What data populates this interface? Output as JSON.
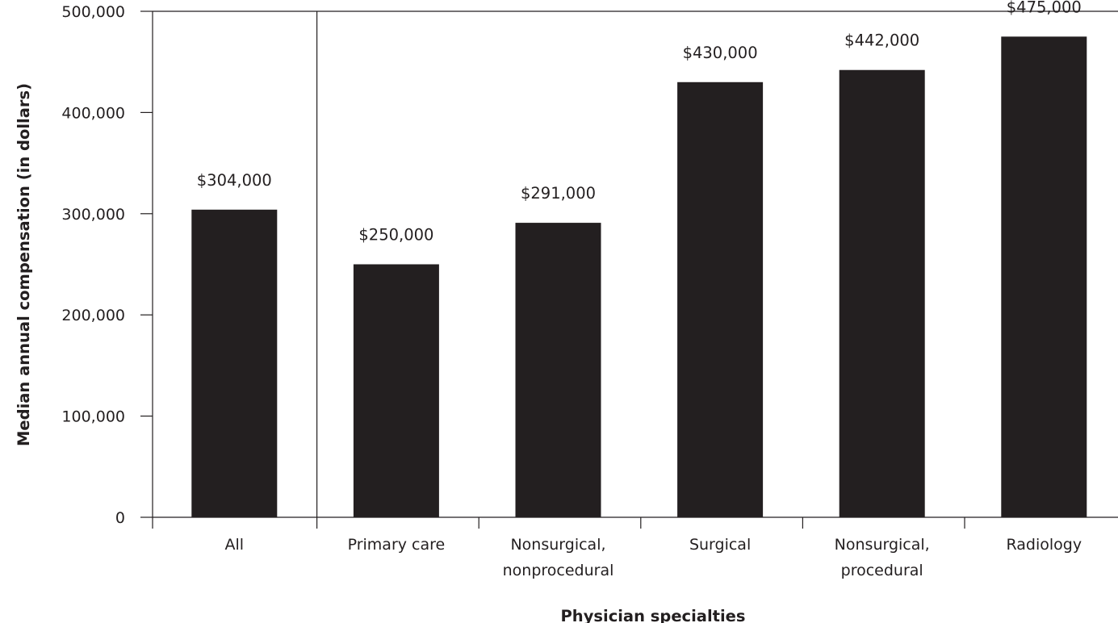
{
  "colors": {
    "bar": "#231f20",
    "axis": "#231f20",
    "text": "#231f20",
    "background": "#ffffff"
  },
  "chart_data": {
    "type": "bar",
    "categories": [
      "All",
      "Primary care",
      "Nonsurgical, nonprocedural",
      "Surgical",
      "Nonsurgical, procedural",
      "Radiology"
    ],
    "category_lines": [
      [
        "All"
      ],
      [
        "Primary care"
      ],
      [
        "Nonsurgical,",
        "nonprocedural"
      ],
      [
        "Surgical"
      ],
      [
        "Nonsurgical,",
        "procedural"
      ],
      [
        "Radiology"
      ]
    ],
    "values": [
      304000,
      250000,
      291000,
      430000,
      442000,
      475000
    ],
    "data_labels": [
      "$304,000",
      "$250,000",
      "$291,000",
      "$430,000",
      "$442,000",
      "$475,000"
    ],
    "title": "",
    "xlabel": "Physician specialties",
    "ylabel": "Median annual compensation (in dollars)",
    "ylim": [
      0,
      500000
    ],
    "yticks": [
      0,
      100000,
      200000,
      300000,
      400000,
      500000
    ],
    "ytick_labels": [
      "0",
      "100,000",
      "200,000",
      "300,000",
      "400,000",
      "500,000"
    ],
    "grid": false,
    "legend": "none",
    "separator_after_category": 0
  }
}
